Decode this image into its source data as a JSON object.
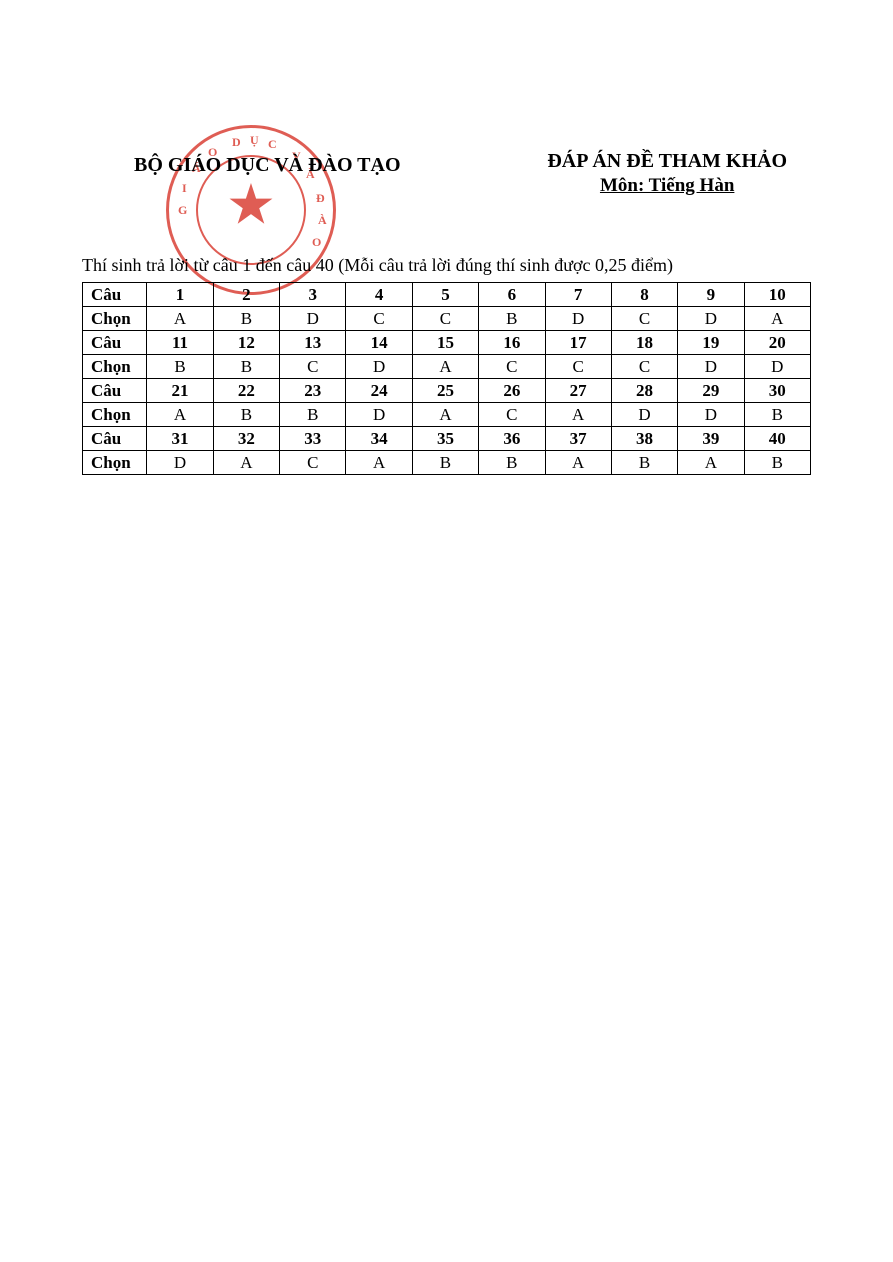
{
  "header": {
    "left_title": "BỘ GIÁO DỤC VÀ ĐÀO TẠO",
    "right_title": "ĐÁP ÁN ĐỀ THAM KHẢO",
    "right_sub": "Môn: Tiếng Hàn"
  },
  "instruction": "Thí sinh trả lời từ câu 1 đến câu 40 (Mỗi câu trả lời đúng thí sinh được 0,25 điểm)",
  "labels": {
    "question": "Câu",
    "choice": "Chọn"
  },
  "seal": {
    "color": "#d83a2f",
    "letters_top": [
      "G",
      "I",
      "Á",
      "O",
      "D",
      "Ụ",
      "C",
      "V",
      "À"
    ],
    "letters_right": [
      "Đ",
      "À",
      "O"
    ],
    "star": "★"
  },
  "table": {
    "groups": [
      {
        "questions": [
          "1",
          "2",
          "3",
          "4",
          "5",
          "6",
          "7",
          "8",
          "9",
          "10"
        ],
        "answers": [
          "A",
          "B",
          "D",
          "C",
          "C",
          "B",
          "D",
          "C",
          "D",
          "A"
        ]
      },
      {
        "questions": [
          "11",
          "12",
          "13",
          "14",
          "15",
          "16",
          "17",
          "18",
          "19",
          "20"
        ],
        "answers": [
          "B",
          "B",
          "C",
          "D",
          "A",
          "C",
          "C",
          "C",
          "D",
          "D"
        ]
      },
      {
        "questions": [
          "21",
          "22",
          "23",
          "24",
          "25",
          "26",
          "27",
          "28",
          "29",
          "30"
        ],
        "answers": [
          "A",
          "B",
          "B",
          "D",
          "A",
          "C",
          "A",
          "D",
          "D",
          "B"
        ]
      },
      {
        "questions": [
          "31",
          "32",
          "33",
          "34",
          "35",
          "36",
          "37",
          "38",
          "39",
          "40"
        ],
        "answers": [
          "D",
          "A",
          "C",
          "A",
          "B",
          "B",
          "A",
          "B",
          "A",
          "B"
        ]
      }
    ]
  },
  "colors": {
    "text": "#000000",
    "seal": "#d83a2f",
    "background": "#ffffff"
  }
}
